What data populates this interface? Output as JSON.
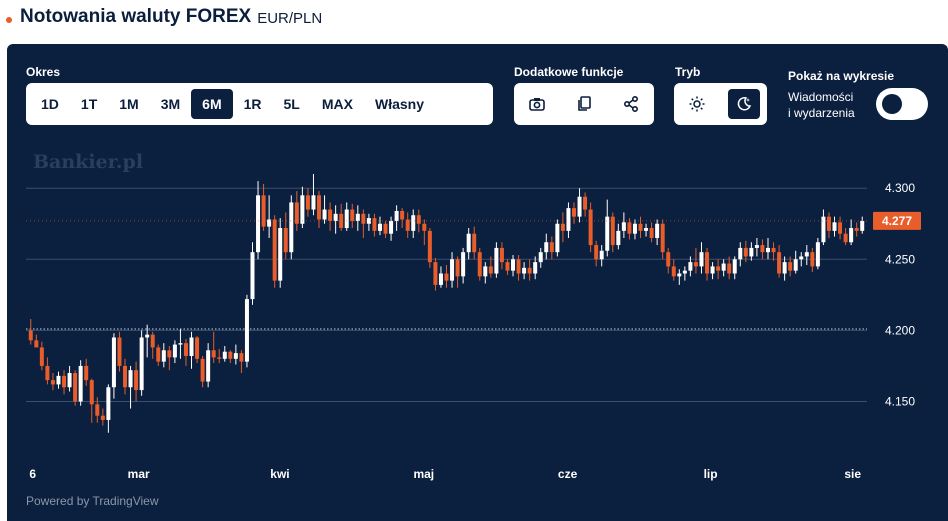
{
  "header": {
    "title": "Notowania waluty FOREX",
    "pair": "EUR/PLN"
  },
  "controls": {
    "period_label": "Okres",
    "periods": [
      "1D",
      "1T",
      "1M",
      "3M",
      "6M",
      "1R",
      "5L",
      "MAX",
      "Własny"
    ],
    "active_period": "6M",
    "extra_label": "Dodatkowe funkcje",
    "extra_icons": [
      "camera-icon",
      "copy-icon",
      "share-icon"
    ],
    "mode_label": "Tryb",
    "mode_icons": [
      "sun-icon",
      "moon-icon"
    ],
    "active_mode": "moon-icon",
    "show_label": "Pokaż na wykresie",
    "events_label_1": "Wiadomości",
    "events_label_2": "i wydarzenia",
    "events_toggle": "off"
  },
  "watermark": "Bankier.pl",
  "powered": "Powered by TradingView",
  "colors": {
    "up": "#ffffff",
    "down": "#e85d2a",
    "background": "#0b1f3f",
    "accent": "#e85d2a"
  },
  "chart_data": {
    "type": "candlestick",
    "pair": "EUR/PLN",
    "x_ticks": [
      "6",
      "mar",
      "kwi",
      "maj",
      "cze",
      "lip",
      "sie"
    ],
    "y_ticks": [
      4.15,
      4.2,
      4.25,
      4.3
    ],
    "ylim": [
      4.125,
      4.31
    ],
    "last_price": 4.277,
    "last_price_label": "4.277",
    "grid": true,
    "reference_line": 4.201,
    "candles": [
      [
        4.2,
        4.208,
        4.193,
        4.19
      ],
      [
        4.193,
        4.197,
        4.188,
        4.189
      ],
      [
        4.188,
        4.192,
        4.175,
        4.172
      ],
      [
        4.175,
        4.181,
        4.165,
        4.162
      ],
      [
        4.165,
        4.17,
        4.162,
        4.158
      ],
      [
        4.162,
        4.171,
        4.168,
        4.159
      ],
      [
        4.168,
        4.172,
        4.16,
        4.155
      ],
      [
        4.16,
        4.175,
        4.17,
        4.157
      ],
      [
        4.17,
        4.172,
        4.15,
        4.147
      ],
      [
        4.15,
        4.179,
        4.175,
        4.147
      ],
      [
        4.175,
        4.18,
        4.165,
        4.161
      ],
      [
        4.165,
        4.166,
        4.148,
        4.135
      ],
      [
        4.148,
        4.153,
        4.14,
        4.135
      ],
      [
        4.14,
        4.145,
        4.137,
        4.133
      ],
      [
        4.137,
        4.162,
        4.16,
        4.128
      ],
      [
        4.16,
        4.198,
        4.195,
        4.152
      ],
      [
        4.195,
        4.199,
        4.175,
        4.171
      ],
      [
        4.175,
        4.18,
        4.16,
        4.155
      ],
      [
        4.16,
        4.175,
        4.172,
        4.145
      ],
      [
        4.172,
        4.178,
        4.158,
        4.15
      ],
      [
        4.158,
        4.2,
        4.195,
        4.154
      ],
      [
        4.195,
        4.204,
        4.197,
        4.181
      ],
      [
        4.197,
        4.199,
        4.188,
        4.18
      ],
      [
        4.188,
        4.19,
        4.178,
        4.175
      ],
      [
        4.178,
        4.191,
        4.186,
        4.174
      ],
      [
        4.186,
        4.189,
        4.181,
        4.172
      ],
      [
        4.181,
        4.193,
        4.19,
        4.177
      ],
      [
        4.19,
        4.201,
        4.191,
        4.18
      ],
      [
        4.191,
        4.194,
        4.182,
        4.175
      ],
      [
        4.182,
        4.199,
        4.195,
        4.173
      ],
      [
        4.195,
        4.196,
        4.18,
        4.177
      ],
      [
        4.18,
        4.182,
        4.164,
        4.16
      ],
      [
        4.164,
        4.191,
        4.186,
        4.16
      ],
      [
        4.186,
        4.199,
        4.181,
        4.177
      ],
      [
        4.181,
        4.187,
        4.18,
        4.177
      ],
      [
        4.18,
        4.189,
        4.185,
        4.178
      ],
      [
        4.185,
        4.186,
        4.18,
        4.177
      ],
      [
        4.18,
        4.19,
        4.184,
        4.176
      ],
      [
        4.184,
        4.186,
        4.178,
        4.17
      ],
      [
        4.178,
        4.225,
        4.222,
        4.174
      ],
      [
        4.222,
        4.262,
        4.255,
        4.218
      ],
      [
        4.255,
        4.305,
        4.295,
        4.25
      ],
      [
        4.295,
        4.303,
        4.273,
        4.27
      ],
      [
        4.273,
        4.295,
        4.278,
        4.265
      ],
      [
        4.278,
        4.281,
        4.235,
        4.23
      ],
      [
        4.235,
        4.279,
        4.272,
        4.23
      ],
      [
        4.272,
        4.283,
        4.255,
        4.25
      ],
      [
        4.255,
        4.295,
        4.29,
        4.25
      ],
      [
        4.29,
        4.298,
        4.275,
        4.27
      ],
      [
        4.275,
        4.301,
        4.295,
        4.272
      ],
      [
        4.295,
        4.3,
        4.285,
        4.28
      ],
      [
        4.285,
        4.31,
        4.295,
        4.281
      ],
      [
        4.295,
        4.298,
        4.278,
        4.272
      ],
      [
        4.278,
        4.295,
        4.285,
        4.275
      ],
      [
        4.285,
        4.29,
        4.277,
        4.27
      ],
      [
        4.277,
        4.288,
        4.282,
        4.268
      ],
      [
        4.282,
        4.289,
        4.272,
        4.27
      ],
      [
        4.272,
        4.29,
        4.285,
        4.27
      ],
      [
        4.285,
        4.289,
        4.277,
        4.272
      ],
      [
        4.277,
        4.288,
        4.282,
        4.27
      ],
      [
        4.282,
        4.285,
        4.275,
        4.265
      ],
      [
        4.275,
        4.282,
        4.279,
        4.27
      ],
      [
        4.279,
        4.282,
        4.27,
        4.266
      ],
      [
        4.27,
        4.28,
        4.275,
        4.267
      ],
      [
        4.275,
        4.277,
        4.268,
        4.265
      ],
      [
        4.268,
        4.28,
        4.277,
        4.263
      ],
      [
        4.277,
        4.288,
        4.284,
        4.27
      ],
      [
        4.284,
        4.286,
        4.278,
        4.272
      ],
      [
        4.278,
        4.283,
        4.27,
        4.265
      ],
      [
        4.27,
        4.285,
        4.281,
        4.265
      ],
      [
        4.281,
        4.285,
        4.275,
        4.269
      ],
      [
        4.275,
        4.278,
        4.27,
        4.26
      ],
      [
        4.27,
        4.272,
        4.248,
        4.244
      ],
      [
        4.248,
        4.251,
        4.232,
        4.228
      ],
      [
        4.232,
        4.245,
        4.24,
        4.23
      ],
      [
        4.24,
        4.246,
        4.235,
        4.23
      ],
      [
        4.235,
        4.255,
        4.25,
        4.23
      ],
      [
        4.25,
        4.252,
        4.238,
        4.23
      ],
      [
        4.238,
        4.258,
        4.255,
        4.233
      ],
      [
        4.255,
        4.272,
        4.268,
        4.25
      ],
      [
        4.268,
        4.273,
        4.255,
        4.25
      ],
      [
        4.255,
        4.258,
        4.238,
        4.235
      ],
      [
        4.238,
        4.248,
        4.245,
        4.233
      ],
      [
        4.245,
        4.252,
        4.24,
        4.237
      ],
      [
        4.24,
        4.262,
        4.258,
        4.237
      ],
      [
        4.258,
        4.262,
        4.248,
        4.243
      ],
      [
        4.248,
        4.25,
        4.242,
        4.239
      ],
      [
        4.242,
        4.253,
        4.25,
        4.238
      ],
      [
        4.25,
        4.253,
        4.24,
        4.235
      ],
      [
        4.24,
        4.248,
        4.244,
        4.236
      ],
      [
        4.244,
        4.25,
        4.24,
        4.235
      ],
      [
        4.24,
        4.252,
        4.248,
        4.236
      ],
      [
        4.248,
        4.258,
        4.255,
        4.244
      ],
      [
        4.255,
        4.268,
        4.262,
        4.25
      ],
      [
        4.262,
        4.266,
        4.255,
        4.25
      ],
      [
        4.255,
        4.278,
        4.275,
        4.252
      ],
      [
        4.275,
        4.283,
        4.27,
        4.262
      ],
      [
        4.27,
        4.29,
        4.286,
        4.265
      ],
      [
        4.286,
        4.29,
        4.28,
        4.275
      ],
      [
        4.28,
        4.3,
        4.294,
        4.276
      ],
      [
        4.294,
        4.297,
        4.285,
        4.28
      ],
      [
        4.285,
        4.29,
        4.26,
        4.255
      ],
      [
        4.26,
        4.263,
        4.25,
        4.245
      ],
      [
        4.25,
        4.26,
        4.256,
        4.245
      ],
      [
        4.256,
        4.292,
        4.28,
        4.252
      ],
      [
        4.28,
        4.283,
        4.26,
        4.255
      ],
      [
        4.26,
        4.275,
        4.27,
        4.257
      ],
      [
        4.27,
        4.283,
        4.276,
        4.265
      ],
      [
        4.276,
        4.279,
        4.268,
        4.264
      ],
      [
        4.268,
        4.278,
        4.275,
        4.264
      ],
      [
        4.275,
        4.28,
        4.27,
        4.265
      ],
      [
        4.27,
        4.275,
        4.272,
        4.266
      ],
      [
        4.272,
        4.276,
        4.265,
        4.262
      ],
      [
        4.265,
        4.278,
        4.275,
        4.26
      ],
      [
        4.275,
        4.278,
        4.255,
        4.25
      ],
      [
        4.255,
        4.258,
        4.245,
        4.24
      ],
      [
        4.245,
        4.25,
        4.238,
        4.235
      ],
      [
        4.238,
        4.243,
        4.24,
        4.232
      ],
      [
        4.24,
        4.245,
        4.242,
        4.235
      ],
      [
        4.242,
        4.252,
        4.248,
        4.238
      ],
      [
        4.248,
        4.258,
        4.245,
        4.24
      ],
      [
        4.245,
        4.262,
        4.255,
        4.24
      ],
      [
        4.255,
        4.258,
        4.24,
        4.235
      ],
      [
        4.24,
        4.248,
        4.245,
        4.236
      ],
      [
        4.245,
        4.25,
        4.242,
        4.236
      ],
      [
        4.242,
        4.25,
        4.247,
        4.238
      ],
      [
        4.247,
        4.252,
        4.24,
        4.236
      ],
      [
        4.24,
        4.252,
        4.25,
        4.236
      ],
      [
        4.25,
        4.262,
        4.258,
        4.245
      ],
      [
        4.258,
        4.263,
        4.252,
        4.248
      ],
      [
        4.252,
        4.262,
        4.258,
        4.249
      ],
      [
        4.258,
        4.265,
        4.26,
        4.252
      ],
      [
        4.26,
        4.264,
        4.255,
        4.25
      ],
      [
        4.255,
        4.265,
        4.258,
        4.25
      ],
      [
        4.258,
        4.262,
        4.255,
        4.249
      ],
      [
        4.255,
        4.26,
        4.24,
        4.237
      ],
      [
        4.24,
        4.252,
        4.248,
        4.235
      ],
      [
        4.248,
        4.252,
        4.242,
        4.238
      ],
      [
        4.242,
        4.256,
        4.25,
        4.24
      ],
      [
        4.25,
        4.255,
        4.252,
        4.245
      ],
      [
        4.252,
        4.26,
        4.255,
        4.246
      ],
      [
        4.255,
        4.258,
        4.245,
        4.241
      ],
      [
        4.245,
        4.265,
        4.262,
        4.243
      ],
      [
        4.262,
        4.285,
        4.28,
        4.26
      ],
      [
        4.28,
        4.283,
        4.27,
        4.265
      ],
      [
        4.27,
        4.28,
        4.276,
        4.266
      ],
      [
        4.276,
        4.28,
        4.268,
        4.264
      ],
      [
        4.268,
        4.272,
        4.262,
        4.26
      ],
      [
        4.262,
        4.278,
        4.272,
        4.26
      ],
      [
        4.272,
        4.276,
        4.27,
        4.266
      ],
      [
        4.27,
        4.28,
        4.277,
        4.268
      ]
    ]
  }
}
